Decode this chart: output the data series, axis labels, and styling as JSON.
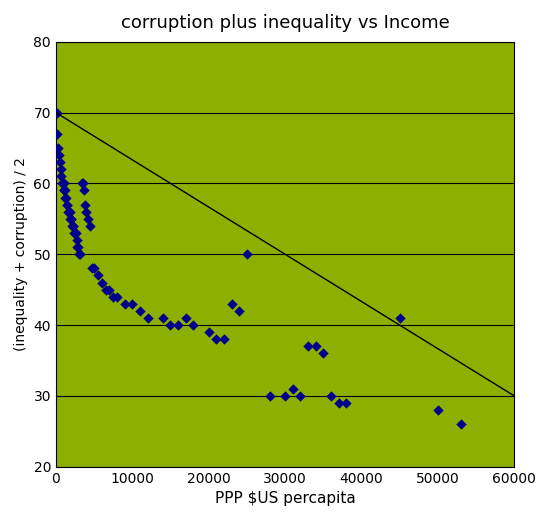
{
  "title": "corruption plus inequality vs Income",
  "xlabel": "PPP $US percapita",
  "ylabel": "(inequality + corruption) / 2",
  "bg_color": "#8DB000",
  "fig_bg_color": "#ffffff",
  "marker_color": "#00008B",
  "line_color": "#000000",
  "xlim": [
    0,
    60000
  ],
  "ylim": [
    20,
    80
  ],
  "xticks": [
    0,
    10000,
    20000,
    30000,
    40000,
    50000,
    60000
  ],
  "yticks": [
    20,
    30,
    40,
    50,
    60,
    70,
    80
  ],
  "trend_x": [
    0,
    60000
  ],
  "trend_y": [
    70,
    30
  ],
  "scatter_x": [
    100,
    200,
    300,
    400,
    500,
    600,
    700,
    800,
    900,
    1000,
    1000,
    1100,
    1200,
    1200,
    1300,
    1400,
    1500,
    1600,
    1700,
    1800,
    1900,
    2000,
    2000,
    2100,
    2200,
    2300,
    2400,
    2500,
    2600,
    2700,
    2800,
    2900,
    3000,
    3200,
    3400,
    3500,
    3700,
    3800,
    4000,
    4200,
    4500,
    4700,
    5000,
    5500,
    6000,
    6500,
    7000,
    7500,
    8000,
    9000,
    10000,
    11000,
    12000,
    14000,
    15000,
    16000,
    17000,
    18000,
    20000,
    21000,
    22000,
    23000,
    24000,
    25000,
    28000,
    30000,
    31000,
    32000,
    33000,
    34000,
    35000,
    36000,
    37000,
    38000,
    45000,
    50000,
    53000
  ],
  "scatter_y": [
    70,
    67,
    65,
    64,
    63,
    62,
    61,
    60,
    60,
    60,
    59,
    59,
    59,
    58,
    58,
    57,
    57,
    56,
    56,
    56,
    55,
    55,
    55,
    54,
    54,
    54,
    53,
    53,
    53,
    52,
    51,
    51,
    50,
    50,
    60,
    60,
    59,
    57,
    56,
    55,
    54,
    48,
    48,
    47,
    46,
    45,
    45,
    44,
    44,
    43,
    43,
    42,
    41,
    41,
    40,
    40,
    41,
    40,
    39,
    38,
    38,
    43,
    42,
    50,
    30,
    30,
    31,
    30,
    37,
    37,
    36,
    30,
    29,
    29,
    41,
    28,
    26
  ]
}
